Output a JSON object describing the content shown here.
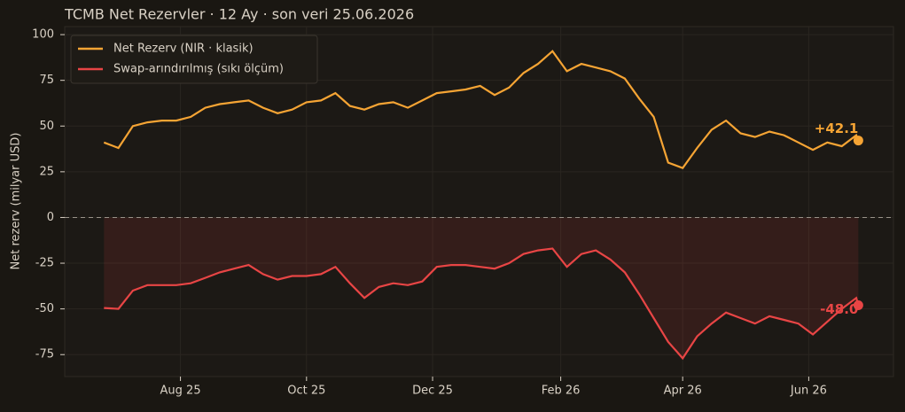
{
  "chart_data": {
    "type": "line",
    "title": "TCMB Net Rezervler · 12 Ay · son veri 25.06.2026",
    "y_label": "Net rezerv (milyar USD)",
    "x": [
      "2025-06-25",
      "2025-07-02",
      "2025-07-09",
      "2025-07-16",
      "2025-07-23",
      "2025-07-30",
      "2025-08-06",
      "2025-08-13",
      "2025-08-20",
      "2025-08-27",
      "2025-09-03",
      "2025-09-10",
      "2025-09-17",
      "2025-09-24",
      "2025-10-01",
      "2025-10-08",
      "2025-10-15",
      "2025-10-22",
      "2025-10-29",
      "2025-11-05",
      "2025-11-12",
      "2025-11-19",
      "2025-11-26",
      "2025-12-03",
      "2025-12-10",
      "2025-12-17",
      "2025-12-24",
      "2025-12-31",
      "2026-01-07",
      "2026-01-14",
      "2026-01-21",
      "2026-01-28",
      "2026-02-04",
      "2026-02-11",
      "2026-02-18",
      "2026-02-25",
      "2026-03-04",
      "2026-03-11",
      "2026-03-18",
      "2026-03-25",
      "2026-04-01",
      "2026-04-08",
      "2026-04-15",
      "2026-04-22",
      "2026-04-29",
      "2026-05-06",
      "2026-05-13",
      "2026-05-20",
      "2026-05-27",
      "2026-06-03",
      "2026-06-10",
      "2026-06-17",
      "2026-06-24",
      "2026-06-25"
    ],
    "series": [
      {
        "name": "Net Rezerv (NIR · klasik)",
        "color": "#f5a434",
        "values": [
          41,
          38,
          50,
          52,
          53,
          53,
          55,
          60,
          62,
          63,
          64,
          60,
          57,
          59,
          63,
          64,
          68,
          61,
          59,
          62,
          63,
          60,
          64,
          68,
          69,
          70,
          72,
          67,
          71,
          79,
          84,
          91,
          80,
          84,
          82,
          80,
          76,
          65,
          55,
          30,
          27,
          38,
          48,
          53,
          46,
          44,
          47,
          45,
          41,
          37,
          41,
          39,
          45,
          42.1
        ],
        "value_labels": [
          null,
          null,
          null,
          null,
          null,
          null,
          null,
          null,
          null,
          null,
          null,
          null,
          null,
          null,
          null,
          null,
          null,
          null,
          null,
          null,
          null,
          null,
          null,
          null,
          null,
          null,
          null,
          null,
          null,
          null,
          null,
          null,
          null,
          null,
          null,
          null,
          null,
          null,
          null,
          null,
          null,
          null,
          null,
          null,
          null,
          null,
          null,
          null,
          null,
          null,
          null,
          null,
          null,
          "+42.1"
        ]
      },
      {
        "name": "Swap-arındırılmış (sıkı ölçüm)",
        "color": "#e84545",
        "values": [
          -49.5,
          -50,
          -40,
          -37,
          -37,
          -37,
          -36,
          -33,
          -30,
          -28,
          -26,
          -31,
          -34,
          -32,
          -32,
          -31,
          -27,
          -36,
          -44,
          -38,
          -36,
          -37,
          -35,
          -27,
          -26,
          -26,
          -27,
          -28,
          -25,
          -20,
          -18,
          -17,
          -27,
          -20,
          -18,
          -23,
          -30,
          -42,
          -55,
          -68,
          -77,
          -65,
          -58,
          -52,
          -55,
          -58,
          -54,
          -56,
          -58,
          -64,
          -57,
          -50,
          -44,
          -48.0
        ],
        "value_labels": [
          null,
          null,
          null,
          null,
          null,
          null,
          null,
          null,
          null,
          null,
          null,
          null,
          null,
          null,
          null,
          null,
          null,
          null,
          null,
          null,
          null,
          null,
          null,
          null,
          null,
          null,
          null,
          null,
          null,
          null,
          null,
          null,
          null,
          null,
          null,
          null,
          null,
          null,
          null,
          null,
          null,
          null,
          null,
          null,
          null,
          null,
          null,
          null,
          null,
          null,
          null,
          null,
          null,
          "-48.0"
        ]
      }
    ],
    "xlim": [
      "2025-06-06",
      "2026-07-12"
    ],
    "xticks": [
      {
        "value": "2025-08-01",
        "label": "Aug 25"
      },
      {
        "value": "2025-10-01",
        "label": "Oct 25"
      },
      {
        "value": "2025-12-01",
        "label": "Dec 25"
      },
      {
        "value": "2026-02-01",
        "label": "Feb 26"
      },
      {
        "value": "2026-04-01",
        "label": "Apr 26"
      },
      {
        "value": "2026-06-01",
        "label": "Jun 26"
      }
    ],
    "ylim": [
      -87,
      104.4
    ],
    "yticks": [
      -75,
      -50,
      -25,
      0,
      25,
      50,
      75,
      100
    ],
    "baseline": 0,
    "grid": true,
    "legend": "upper left"
  }
}
